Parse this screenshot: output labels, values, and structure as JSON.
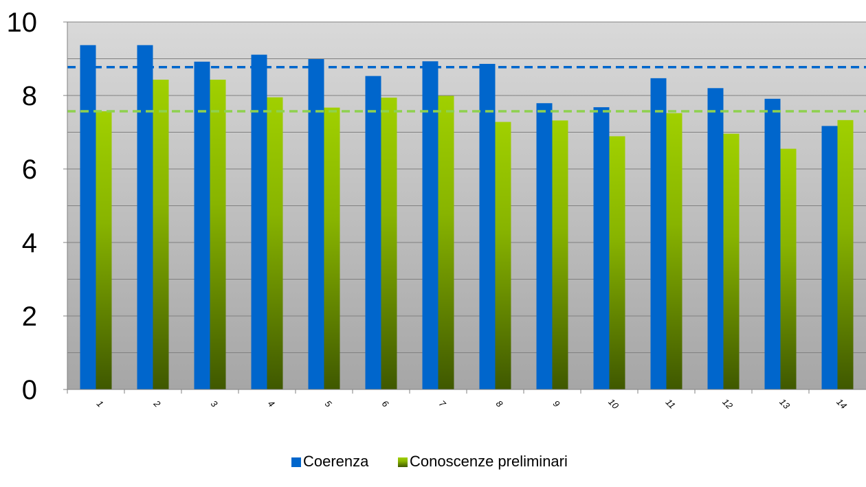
{
  "chart_data": {
    "type": "bar",
    "categories": [
      "1",
      "2",
      "3",
      "4",
      "5",
      "6",
      "7",
      "8",
      "9",
      "10",
      "11",
      "12",
      "13",
      "14"
    ],
    "series": [
      {
        "name": "Coerenza",
        "color": "#0066CC",
        "values": [
          9.37,
          9.37,
          8.92,
          9.11,
          8.99,
          8.53,
          8.93,
          8.86,
          7.79,
          7.68,
          8.47,
          8.2,
          7.91,
          7.17
        ]
      },
      {
        "name": "Conoscenze preliminari",
        "color": "#99CC00",
        "values": [
          7.57,
          8.43,
          8.43,
          7.95,
          7.67,
          7.94,
          7.99,
          7.28,
          7.32,
          6.89,
          7.52,
          6.96,
          6.55,
          7.33
        ]
      }
    ],
    "reference_lines": [
      {
        "series": "Coerenza",
        "value": 8.77,
        "style": "dashed",
        "color": "#0066CC"
      },
      {
        "series": "Conoscenze preliminari",
        "value": 7.57,
        "style": "dashed",
        "color": "#8FD14F"
      }
    ],
    "yticks": [
      "0",
      "2",
      "4",
      "6",
      "8",
      "10"
    ],
    "ylim": [
      0,
      10
    ],
    "grid": true,
    "legend_position": "bottom-center",
    "plot_background": "gradient-gray"
  }
}
